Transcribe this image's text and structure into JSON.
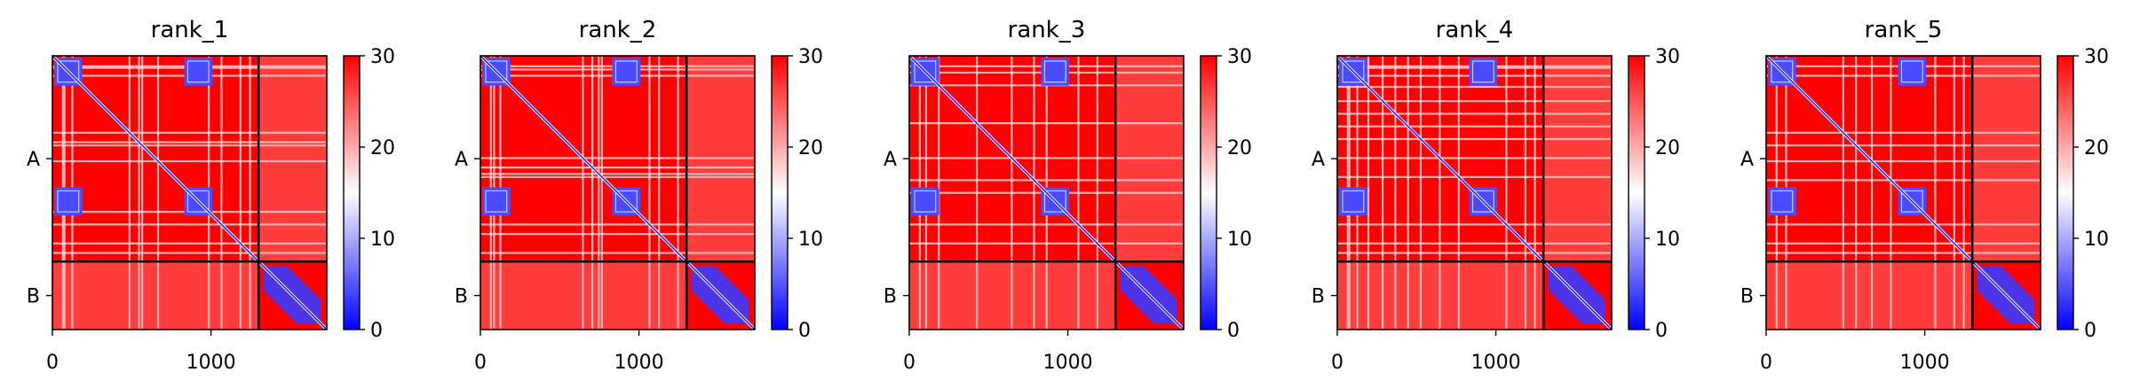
{
  "chart_data": [
    {
      "type": "heatmap",
      "title": "rank_1",
      "xticks": [
        0,
        1000
      ],
      "yticks": [
        "A",
        "B"
      ],
      "chains": [
        "A",
        "B"
      ],
      "chain_boundary": 1300,
      "length": 1730,
      "colorbar": {
        "vmin": 0,
        "vmax": 30,
        "ticks": [
          0,
          10,
          20,
          30
        ],
        "colors": [
          "#0000ff",
          "#ffffff",
          "#ff0000"
        ]
      },
      "xlabel": "",
      "ylabel": ""
    },
    {
      "type": "heatmap",
      "title": "rank_2",
      "xticks": [
        0,
        1000
      ],
      "yticks": [
        "A",
        "B"
      ],
      "chains": [
        "A",
        "B"
      ],
      "chain_boundary": 1300,
      "length": 1730,
      "colorbar": {
        "vmin": 0,
        "vmax": 30,
        "ticks": [
          0,
          10,
          20,
          30
        ],
        "colors": [
          "#0000ff",
          "#ffffff",
          "#ff0000"
        ]
      },
      "xlabel": "",
      "ylabel": ""
    },
    {
      "type": "heatmap",
      "title": "rank_3",
      "xticks": [
        0,
        1000
      ],
      "yticks": [
        "A",
        "B"
      ],
      "chains": [
        "A",
        "B"
      ],
      "chain_boundary": 1300,
      "length": 1730,
      "colorbar": {
        "vmin": 0,
        "vmax": 30,
        "ticks": [
          0,
          10,
          20,
          30
        ],
        "colors": [
          "#0000ff",
          "#ffffff",
          "#ff0000"
        ]
      },
      "xlabel": "",
      "ylabel": ""
    },
    {
      "type": "heatmap",
      "title": "rank_4",
      "xticks": [
        0,
        1000
      ],
      "yticks": [
        "A",
        "B"
      ],
      "chains": [
        "A",
        "B"
      ],
      "chain_boundary": 1300,
      "length": 1730,
      "colorbar": {
        "vmin": 0,
        "vmax": 30,
        "ticks": [
          0,
          10,
          20,
          30
        ],
        "colors": [
          "#0000ff",
          "#ffffff",
          "#ff0000"
        ]
      },
      "xlabel": "",
      "ylabel": ""
    },
    {
      "type": "heatmap",
      "title": "rank_5",
      "xticks": [
        0,
        1000
      ],
      "yticks": [
        "A",
        "B"
      ],
      "chains": [
        "A",
        "B"
      ],
      "chain_boundary": 1300,
      "length": 1730,
      "colorbar": {
        "vmin": 0,
        "vmax": 30,
        "ticks": [
          0,
          10,
          20,
          30
        ],
        "colors": [
          "#0000ff",
          "#ffffff",
          "#ff0000"
        ]
      },
      "xlabel": "",
      "ylabel": ""
    }
  ]
}
